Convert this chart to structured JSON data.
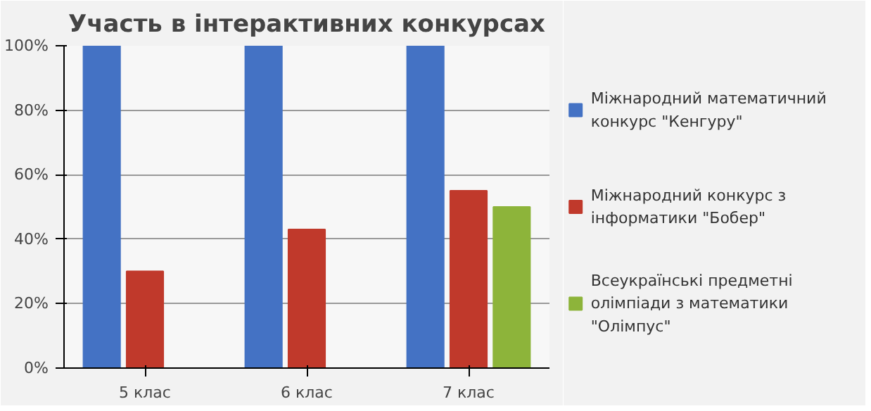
{
  "chart_data": {
    "type": "bar",
    "title": "Участь в інтерактивних конкурсах",
    "categories": [
      "5 клас",
      "6 клас",
      "7 клас"
    ],
    "series": [
      {
        "name": "Міжнародний математичний конкурс \"Кенгуру\"",
        "color": "#4472c4",
        "values": [
          100,
          100,
          100
        ]
      },
      {
        "name": "Міжнародний конкурс з інформатики \"Бобер\"",
        "color": "#c0392b",
        "values": [
          30,
          43,
          55
        ]
      },
      {
        "name": "Всеукраїнські предметні олімпіади з математики \"Олімпус\"",
        "color": "#8db43a",
        "values": [
          0,
          0,
          50
        ]
      }
    ],
    "ylim": [
      0,
      100
    ],
    "yticks": [
      {
        "value": 0,
        "label": "0%"
      },
      {
        "value": 20,
        "label": "20%"
      },
      {
        "value": 40,
        "label": "40%"
      },
      {
        "value": 60,
        "label": "60%"
      },
      {
        "value": 80,
        "label": "80%"
      },
      {
        "value": 100,
        "label": "100%"
      }
    ],
    "grid": "y",
    "legend": "right"
  }
}
